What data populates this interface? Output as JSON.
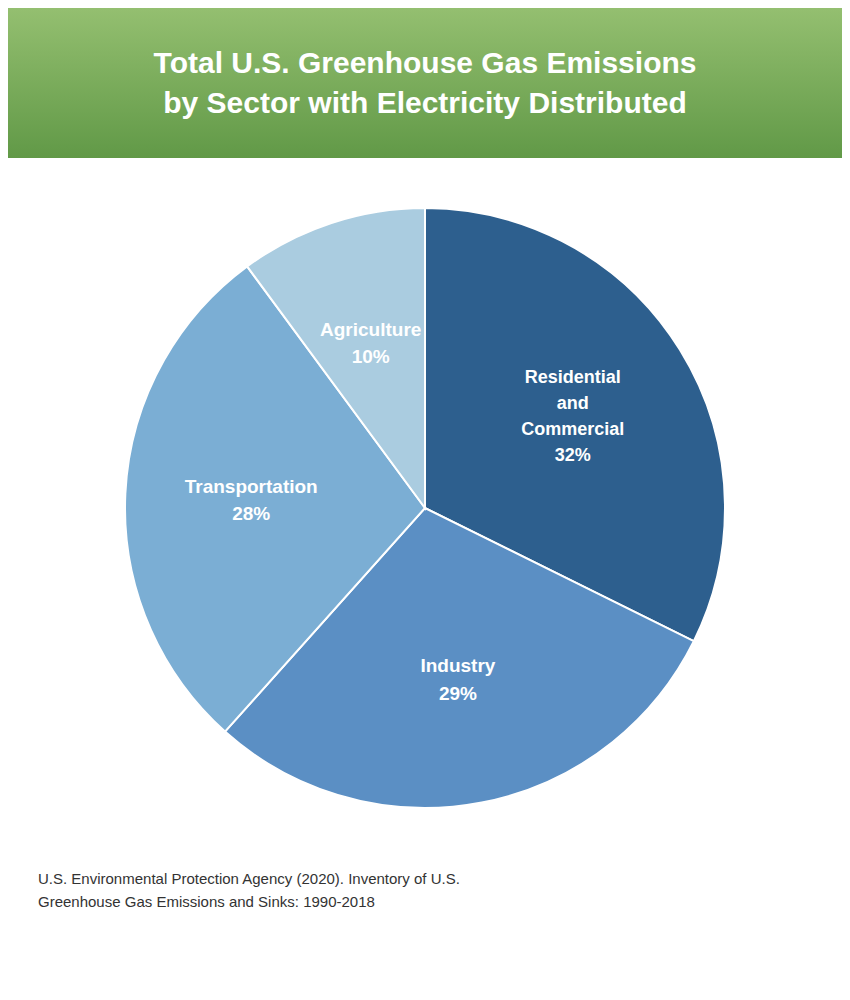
{
  "chart_data": {
    "type": "pie",
    "title": "Total U.S. Greenhouse Gas Emissions\nby Sector with Electricity Distributed",
    "categories": [
      "Residential\nand\nCommercial",
      "Industry",
      "Transportation",
      "Agriculture"
    ],
    "values": [
      32,
      29,
      28,
      10
    ],
    "value_labels": [
      "32%",
      "29%",
      "28%",
      "10%"
    ],
    "data_labels": true,
    "colors": [
      "#2d5f8e",
      "#5b8fc4",
      "#7baed4",
      "#aacce0"
    ],
    "annotations": [
      "U.S. Environmental Protection Agency (2020). Inventory of U.S.\nGreenhouse Gas Emissions and Sinks: 1990-2018"
    ]
  }
}
